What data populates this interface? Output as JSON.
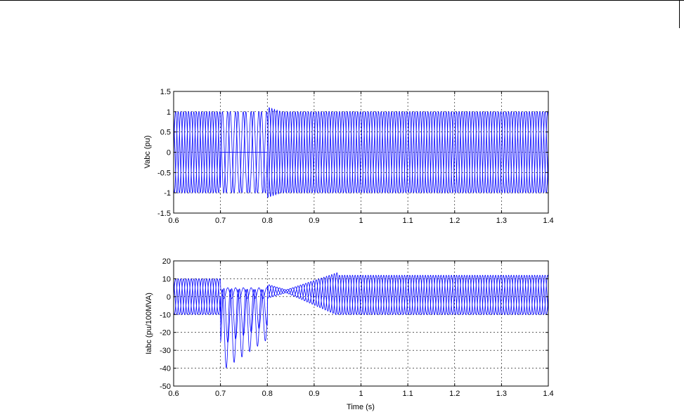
{
  "chart_data": [
    {
      "type": "line",
      "title": "",
      "xlabel": "",
      "ylabel": "Vabc (pu)",
      "xlim": [
        0.6,
        1.4
      ],
      "ylim": [
        -1.5,
        1.5
      ],
      "xticks": [
        "0.6",
        "0.7",
        "0.8",
        "0.9",
        "1",
        "1.1",
        "1.2",
        "1.3",
        "1.4"
      ],
      "yticks": [
        "-1.5",
        "-1",
        "-0.5",
        "0",
        "0.5",
        "1",
        "1.5"
      ],
      "grid": true,
      "line_color": "#0000ff",
      "frequency_hz": 60,
      "phases": 3,
      "segments": [
        {
          "t_start": 0.6,
          "t_end": 0.7,
          "amplitude": 1.0
        },
        {
          "t_start": 0.7,
          "t_end": 0.8,
          "amplitude": 1.0,
          "phase_b_amplitude": 0.0
        },
        {
          "t_start": 0.8,
          "t_end": 0.83,
          "amplitude": 1.12
        },
        {
          "t_start": 0.83,
          "t_end": 1.4,
          "amplitude": 1.0
        }
      ]
    },
    {
      "type": "line",
      "title": "",
      "xlabel": "Time (s)",
      "ylabel": "Iabc (pu/100MVA)",
      "xlim": [
        0.6,
        1.4
      ],
      "ylim": [
        -50,
        20
      ],
      "xticks": [
        "0.6",
        "0.7",
        "0.8",
        "0.9",
        "1",
        "1.1",
        "1.2",
        "1.3",
        "1.4"
      ],
      "yticks": [
        "-50",
        "-40",
        "-30",
        "-20",
        "-10",
        "0",
        "10",
        "20"
      ],
      "grid": true,
      "line_color": "#0000ff",
      "frequency_hz": 60,
      "phases": 3,
      "segments": [
        {
          "t_start": 0.6,
          "t_end": 0.7,
          "amplitude": 10
        },
        {
          "t_start": 0.7,
          "t_end": 0.8,
          "fault_peak": -42,
          "fault_min_end": -24
        },
        {
          "t_start": 0.8,
          "t_end": 0.84,
          "amplitude": 4
        },
        {
          "t_start": 0.84,
          "t_end": 0.95,
          "amplitude_start": 4,
          "amplitude_end": 12
        },
        {
          "t_start": 0.95,
          "t_end": 1.4,
          "amplitude": 11
        }
      ],
      "center": 3
    }
  ]
}
